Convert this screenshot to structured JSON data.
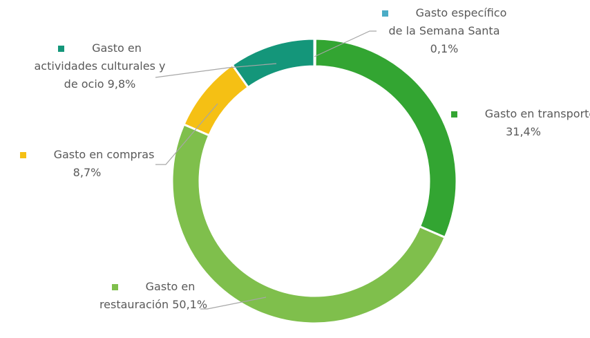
{
  "chart_data": {
    "type": "donut",
    "categories": [
      "Gasto específico de la Semana Santa",
      "Gasto en transporte",
      "Gasto en restauración",
      "Gasto en compras",
      "Gasto en actividades culturales y de ocio"
    ],
    "values": [
      0.1,
      31.4,
      50.1,
      8.7,
      9.8
    ],
    "value_labels": [
      "0,1%",
      "31,4%",
      "50,1%",
      "8,7%",
      "9,8%"
    ],
    "colors": [
      "#4bacc6",
      "#33a532",
      "#7fbf4c",
      "#f5c014",
      "#14967a"
    ]
  }
}
